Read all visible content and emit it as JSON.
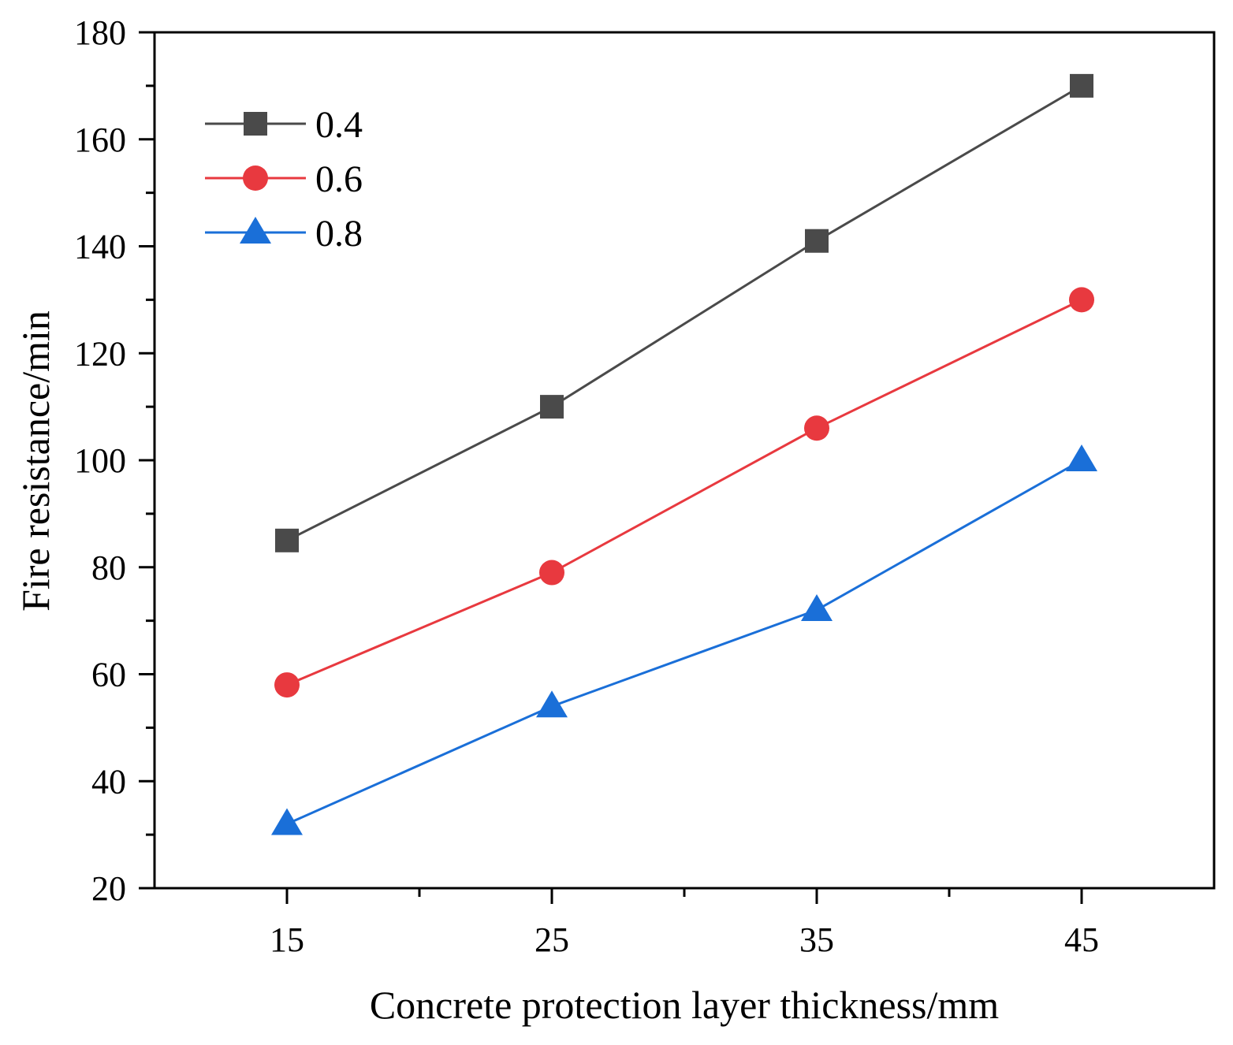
{
  "chart_data": {
    "type": "line",
    "xlabel": "Concrete protection layer thickness/mm",
    "ylabel": "Fire resistance/min",
    "x": [
      15,
      25,
      35,
      45
    ],
    "xlim": [
      10,
      50
    ],
    "ylim": [
      20,
      180
    ],
    "xticks": [
      15,
      25,
      35,
      45
    ],
    "yticks": [
      20,
      40,
      60,
      80,
      100,
      120,
      140,
      160,
      180
    ],
    "legend_position": "top-left",
    "grid": false,
    "series": [
      {
        "name": "0.4",
        "marker": "square",
        "color": "#4a4a4a",
        "values": [
          85,
          110,
          141,
          170
        ]
      },
      {
        "name": "0.6",
        "marker": "circle",
        "color": "#e8393f",
        "values": [
          58,
          79,
          106,
          130
        ]
      },
      {
        "name": "0.8",
        "marker": "triangle",
        "color": "#1a6fd8",
        "values": [
          32,
          54,
          72,
          100
        ]
      }
    ]
  }
}
